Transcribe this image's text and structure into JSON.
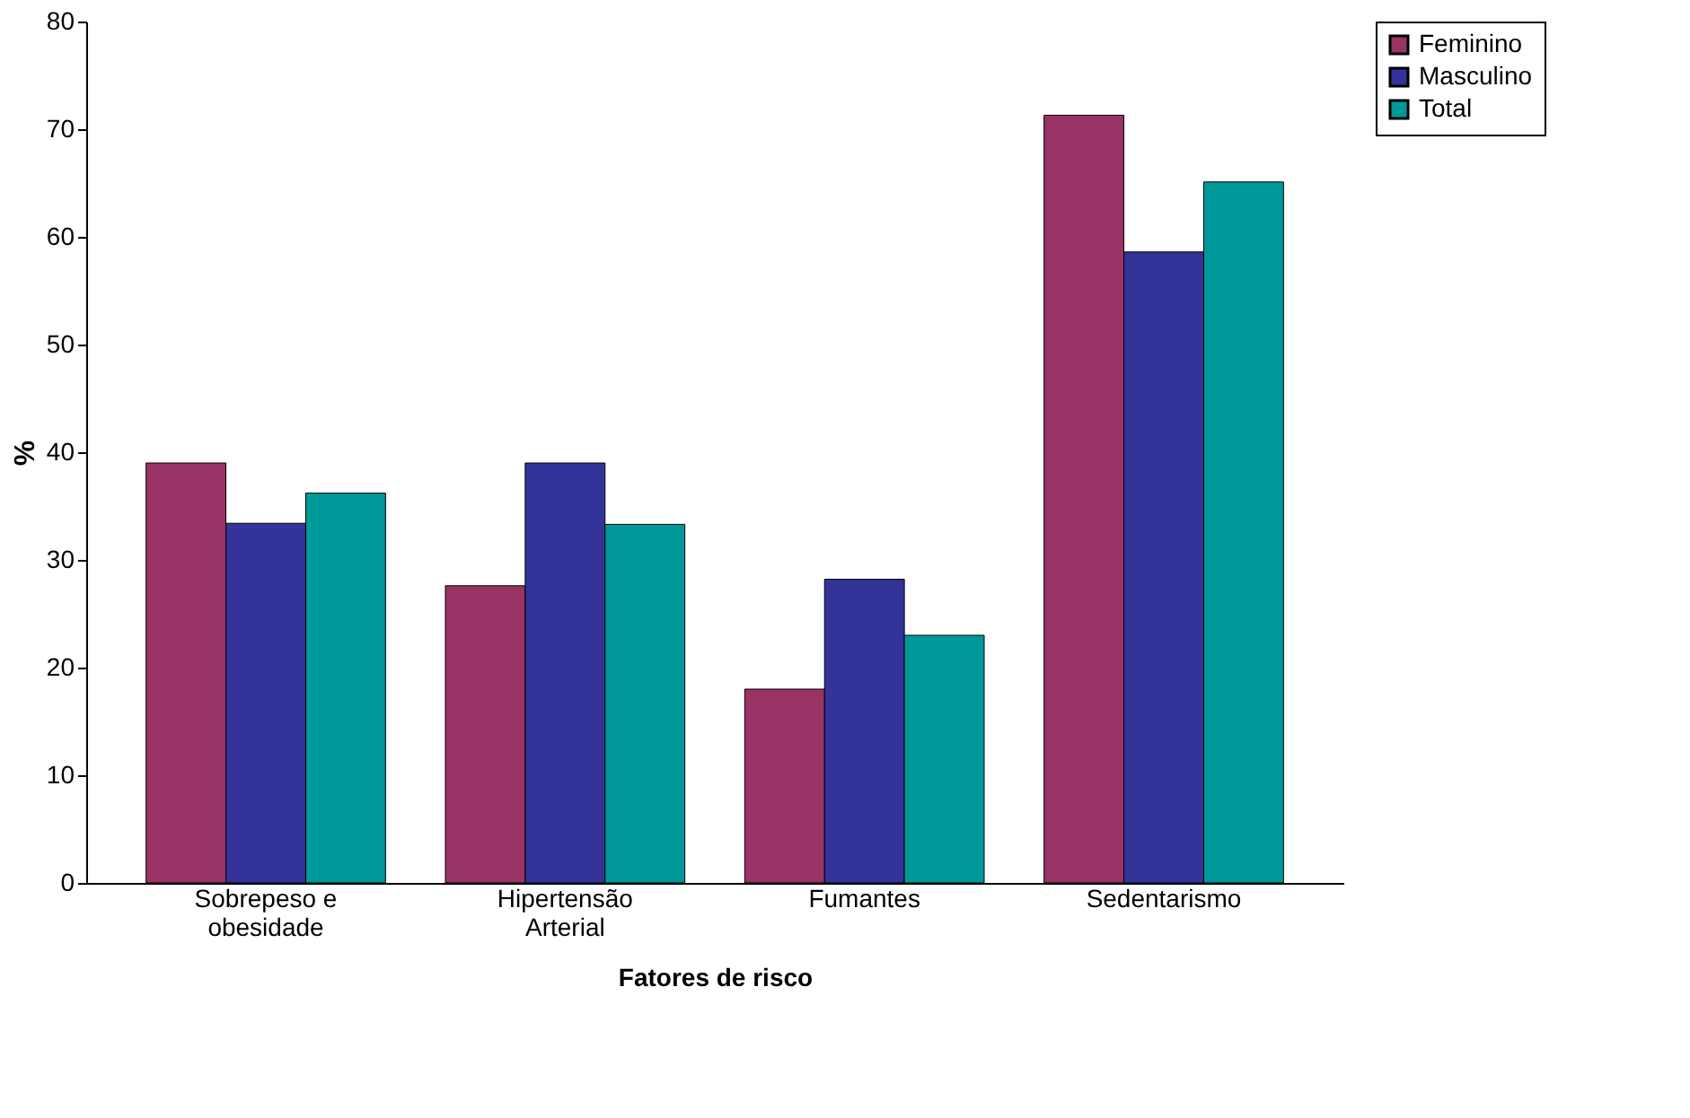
{
  "chart_data": {
    "type": "bar",
    "xlabel": "Fatores de risco",
    "ylabel": "%",
    "categories": [
      "Sobrepeso e obesidade",
      "Hipertensão Arterial",
      "Fumantes",
      "Sedentarismo"
    ],
    "series": [
      {
        "name": "Feminino",
        "color": "#993366",
        "values": [
          39.0,
          27.6,
          18.0,
          71.3
        ]
      },
      {
        "name": "Masculino",
        "color": "#333399",
        "values": [
          33.4,
          39.0,
          28.2,
          58.6
        ]
      },
      {
        "name": "Total",
        "color": "#009999",
        "values": [
          36.2,
          33.3,
          23.0,
          65.1
        ]
      }
    ],
    "ylim": [
      0,
      80
    ],
    "yticks": [
      0,
      10,
      20,
      30,
      40,
      50,
      60,
      70,
      80
    ],
    "grid": false,
    "legend": "right"
  }
}
